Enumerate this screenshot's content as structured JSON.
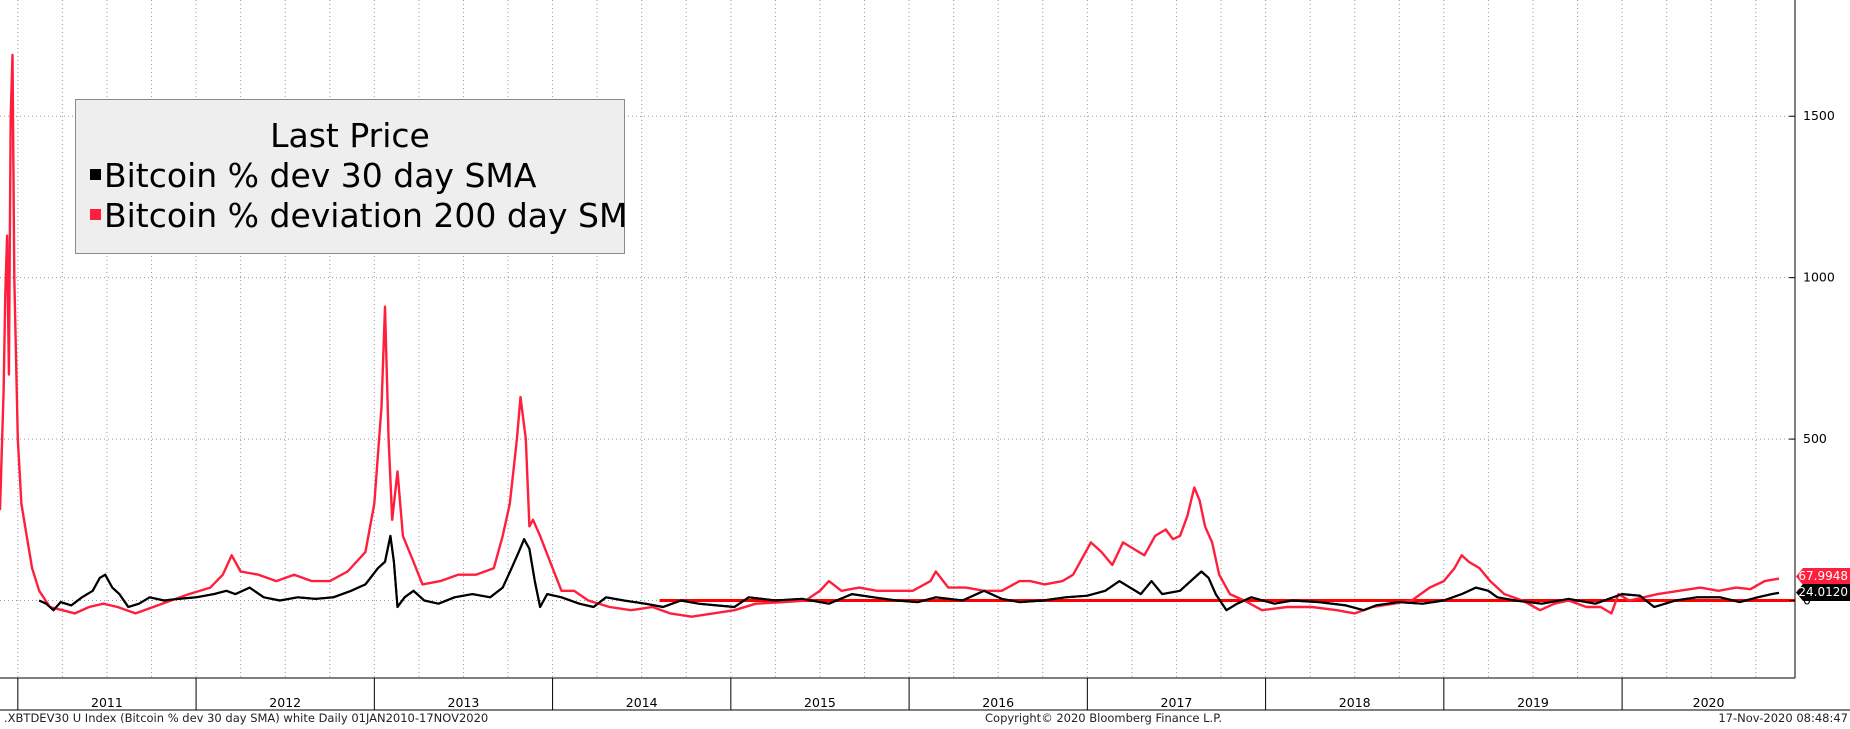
{
  "chart_data": {
    "type": "line",
    "legend": {
      "title": "Last Price",
      "placement": "top-left",
      "items": [
        "Bitcoin % dev 30 day SMA",
        "Bitcoin % deviation 200 day SM"
      ]
    },
    "x_ticks": [
      "2011",
      "2012",
      "2013",
      "2014",
      "2015",
      "2016",
      "2017",
      "2018",
      "2019",
      "2020"
    ],
    "y_ticks": [
      "1500",
      "1000",
      "500",
      "0"
    ],
    "ylim": [
      -240,
      1860
    ],
    "xlim": [
      2010.9,
      2020.97
    ],
    "grid": true,
    "colors": {
      "sma30": "#000000",
      "sma200": "#ff1f3d",
      "zero_line": "#ff0000"
    },
    "last_values": {
      "sma200": "67.9948",
      "sma30": "24.0120"
    },
    "series": [
      {
        "name": "Bitcoin % dev 30 day SMA",
        "color": "#000000",
        "points": [
          [
            2011.12,
            0
          ],
          [
            2011.16,
            -10
          ],
          [
            2011.2,
            -30
          ],
          [
            2011.24,
            -5
          ],
          [
            2011.3,
            -15
          ],
          [
            2011.36,
            10
          ],
          [
            2011.42,
            30
          ],
          [
            2011.46,
            70
          ],
          [
            2011.49,
            80
          ],
          [
            2011.53,
            40
          ],
          [
            2011.57,
            20
          ],
          [
            2011.62,
            -20
          ],
          [
            2011.68,
            -10
          ],
          [
            2011.74,
            10
          ],
          [
            2011.82,
            0
          ],
          [
            2011.9,
            5
          ],
          [
            2012.0,
            10
          ],
          [
            2012.1,
            20
          ],
          [
            2012.17,
            30
          ],
          [
            2012.22,
            20
          ],
          [
            2012.3,
            40
          ],
          [
            2012.38,
            10
          ],
          [
            2012.47,
            0
          ],
          [
            2012.57,
            10
          ],
          [
            2012.67,
            5
          ],
          [
            2012.77,
            10
          ],
          [
            2012.87,
            30
          ],
          [
            2012.95,
            50
          ],
          [
            2013.02,
            100
          ],
          [
            2013.06,
            120
          ],
          [
            2013.09,
            200
          ],
          [
            2013.11,
            120
          ],
          [
            2013.13,
            -20
          ],
          [
            2013.17,
            10
          ],
          [
            2013.22,
            30
          ],
          [
            2013.28,
            0
          ],
          [
            2013.36,
            -10
          ],
          [
            2013.45,
            10
          ],
          [
            2013.55,
            20
          ],
          [
            2013.65,
            10
          ],
          [
            2013.72,
            40
          ],
          [
            2013.77,
            100
          ],
          [
            2013.81,
            150
          ],
          [
            2013.84,
            190
          ],
          [
            2013.87,
            160
          ],
          [
            2013.9,
            60
          ],
          [
            2013.93,
            -20
          ],
          [
            2013.97,
            20
          ],
          [
            2014.05,
            10
          ],
          [
            2014.15,
            -10
          ],
          [
            2014.23,
            -20
          ],
          [
            2014.3,
            10
          ],
          [
            2014.4,
            0
          ],
          [
            2014.52,
            -10
          ],
          [
            2014.62,
            -20
          ],
          [
            2014.72,
            0
          ],
          [
            2014.82,
            -10
          ],
          [
            2014.92,
            -15
          ],
          [
            2015.02,
            -20
          ],
          [
            2015.1,
            10
          ],
          [
            2015.25,
            0
          ],
          [
            2015.4,
            5
          ],
          [
            2015.55,
            -10
          ],
          [
            2015.68,
            20
          ],
          [
            2015.8,
            10
          ],
          [
            2015.93,
            0
          ],
          [
            2016.05,
            -5
          ],
          [
            2016.15,
            10
          ],
          [
            2016.3,
            0
          ],
          [
            2016.42,
            30
          ],
          [
            2016.52,
            5
          ],
          [
            2016.62,
            -5
          ],
          [
            2016.75,
            0
          ],
          [
            2016.88,
            10
          ],
          [
            2017.0,
            15
          ],
          [
            2017.1,
            30
          ],
          [
            2017.18,
            60
          ],
          [
            2017.24,
            40
          ],
          [
            2017.3,
            20
          ],
          [
            2017.36,
            60
          ],
          [
            2017.42,
            20
          ],
          [
            2017.52,
            30
          ],
          [
            2017.58,
            60
          ],
          [
            2017.64,
            90
          ],
          [
            2017.68,
            70
          ],
          [
            2017.72,
            20
          ],
          [
            2017.78,
            -30
          ],
          [
            2017.84,
            -10
          ],
          [
            2017.92,
            10
          ],
          [
            2018.05,
            -10
          ],
          [
            2018.15,
            0
          ],
          [
            2018.3,
            -5
          ],
          [
            2018.45,
            -15
          ],
          [
            2018.55,
            -30
          ],
          [
            2018.62,
            -15
          ],
          [
            2018.75,
            -5
          ],
          [
            2018.88,
            -10
          ],
          [
            2019.0,
            0
          ],
          [
            2019.1,
            20
          ],
          [
            2019.18,
            40
          ],
          [
            2019.25,
            30
          ],
          [
            2019.3,
            10
          ],
          [
            2019.4,
            0
          ],
          [
            2019.55,
            -10
          ],
          [
            2019.7,
            5
          ],
          [
            2019.85,
            -10
          ],
          [
            2020.0,
            20
          ],
          [
            2020.1,
            15
          ],
          [
            2020.18,
            -20
          ],
          [
            2020.3,
            0
          ],
          [
            2020.42,
            10
          ],
          [
            2020.55,
            10
          ],
          [
            2020.66,
            -5
          ],
          [
            2020.76,
            10
          ],
          [
            2020.84,
            20
          ],
          [
            2020.88,
            24
          ]
        ]
      },
      {
        "name": "Bitcoin % deviation 200 day SM",
        "color": "#ff1f3d",
        "points": [
          [
            2010.9,
            280
          ],
          [
            2010.92,
            650
          ],
          [
            2010.93,
            950
          ],
          [
            2010.94,
            1130
          ],
          [
            2010.95,
            700
          ],
          [
            2010.96,
            1500
          ],
          [
            2010.97,
            1690
          ],
          [
            2010.98,
            1000
          ],
          [
            2011.0,
            500
          ],
          [
            2011.02,
            300
          ],
          [
            2011.05,
            200
          ],
          [
            2011.08,
            100
          ],
          [
            2011.12,
            30
          ],
          [
            2011.18,
            -20
          ],
          [
            2011.25,
            -30
          ],
          [
            2011.32,
            -40
          ],
          [
            2011.4,
            -20
          ],
          [
            2011.48,
            -10
          ],
          [
            2011.56,
            -20
          ],
          [
            2011.66,
            -40
          ],
          [
            2011.76,
            -20
          ],
          [
            2011.86,
            0
          ],
          [
            2011.96,
            20
          ],
          [
            2012.08,
            40
          ],
          [
            2012.15,
            80
          ],
          [
            2012.2,
            140
          ],
          [
            2012.25,
            90
          ],
          [
            2012.35,
            80
          ],
          [
            2012.45,
            60
          ],
          [
            2012.55,
            80
          ],
          [
            2012.65,
            60
          ],
          [
            2012.75,
            60
          ],
          [
            2012.85,
            90
          ],
          [
            2012.95,
            150
          ],
          [
            2013.0,
            300
          ],
          [
            2013.04,
            600
          ],
          [
            2013.06,
            910
          ],
          [
            2013.08,
            500
          ],
          [
            2013.1,
            250
          ],
          [
            2013.13,
            400
          ],
          [
            2013.16,
            200
          ],
          [
            2013.22,
            120
          ],
          [
            2013.27,
            50
          ],
          [
            2013.37,
            60
          ],
          [
            2013.47,
            80
          ],
          [
            2013.57,
            80
          ],
          [
            2013.67,
            100
          ],
          [
            2013.72,
            200
          ],
          [
            2013.76,
            300
          ],
          [
            2013.8,
            500
          ],
          [
            2013.82,
            630
          ],
          [
            2013.85,
            500
          ],
          [
            2013.87,
            230
          ],
          [
            2013.89,
            250
          ],
          [
            2013.93,
            200
          ],
          [
            2014.0,
            100
          ],
          [
            2014.05,
            30
          ],
          [
            2014.12,
            30
          ],
          [
            2014.2,
            0
          ],
          [
            2014.32,
            -20
          ],
          [
            2014.44,
            -30
          ],
          [
            2014.56,
            -20
          ],
          [
            2014.66,
            -40
          ],
          [
            2014.78,
            -50
          ],
          [
            2014.9,
            -40
          ],
          [
            2015.02,
            -30
          ],
          [
            2015.14,
            -10
          ],
          [
            2015.3,
            -5
          ],
          [
            2015.42,
            0
          ],
          [
            2015.5,
            30
          ],
          [
            2015.55,
            60
          ],
          [
            2015.62,
            30
          ],
          [
            2015.72,
            40
          ],
          [
            2015.82,
            30
          ],
          [
            2015.92,
            30
          ],
          [
            2016.02,
            30
          ],
          [
            2016.12,
            60
          ],
          [
            2016.15,
            90
          ],
          [
            2016.22,
            40
          ],
          [
            2016.32,
            40
          ],
          [
            2016.42,
            30
          ],
          [
            2016.52,
            30
          ],
          [
            2016.62,
            60
          ],
          [
            2016.68,
            60
          ],
          [
            2016.76,
            50
          ],
          [
            2016.86,
            60
          ],
          [
            2016.92,
            80
          ],
          [
            2016.96,
            120
          ],
          [
            2017.02,
            180
          ],
          [
            2017.08,
            150
          ],
          [
            2017.14,
            110
          ],
          [
            2017.2,
            180
          ],
          [
            2017.26,
            160
          ],
          [
            2017.32,
            140
          ],
          [
            2017.38,
            200
          ],
          [
            2017.44,
            220
          ],
          [
            2017.48,
            190
          ],
          [
            2017.52,
            200
          ],
          [
            2017.56,
            260
          ],
          [
            2017.6,
            350
          ],
          [
            2017.63,
            310
          ],
          [
            2017.66,
            230
          ],
          [
            2017.7,
            180
          ],
          [
            2017.74,
            80
          ],
          [
            2017.8,
            20
          ],
          [
            2017.88,
            0
          ],
          [
            2017.98,
            -30
          ],
          [
            2018.12,
            -20
          ],
          [
            2018.26,
            -20
          ],
          [
            2018.4,
            -30
          ],
          [
            2018.5,
            -40
          ],
          [
            2018.6,
            -20
          ],
          [
            2018.72,
            -10
          ],
          [
            2018.82,
            0
          ],
          [
            2018.92,
            40
          ],
          [
            2019.0,
            60
          ],
          [
            2019.06,
            100
          ],
          [
            2019.1,
            140
          ],
          [
            2019.14,
            120
          ],
          [
            2019.2,
            100
          ],
          [
            2019.26,
            60
          ],
          [
            2019.34,
            20
          ],
          [
            2019.44,
            0
          ],
          [
            2019.54,
            -30
          ],
          [
            2019.62,
            -10
          ],
          [
            2019.7,
            0
          ],
          [
            2019.8,
            -20
          ],
          [
            2019.88,
            -20
          ],
          [
            2019.94,
            -40
          ],
          [
            2019.98,
            20
          ],
          [
            2020.04,
            0
          ],
          [
            2020.12,
            10
          ],
          [
            2020.2,
            20
          ],
          [
            2020.32,
            30
          ],
          [
            2020.44,
            40
          ],
          [
            2020.54,
            30
          ],
          [
            2020.64,
            40
          ],
          [
            2020.72,
            35
          ],
          [
            2020.8,
            60
          ],
          [
            2020.88,
            68
          ]
        ]
      }
    ]
  },
  "footer": {
    "left": ".XBTDEV30 U Index (Bitcoin % dev 30 day SMA) white  Daily 01JAN2010-17NOV2020",
    "center": "Copyright© 2020 Bloomberg Finance L.P.",
    "right": "17-Nov-2020 08:48:47"
  }
}
